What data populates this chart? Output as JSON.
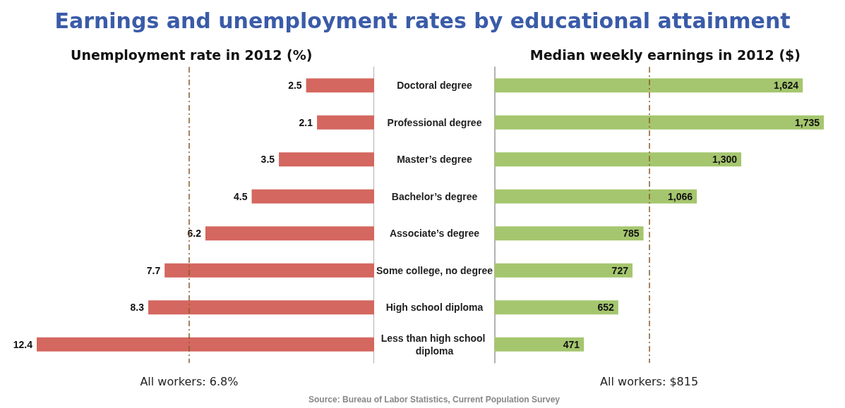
{
  "chart_data": [
    {
      "type": "bar",
      "orientation": "horizontal",
      "title": "Earnings and unemployment rates by educational attainment",
      "subtitle": "Unemployment rate in 2012 (%)",
      "categories": [
        "Doctoral degree",
        "Professional degree",
        "Master’s degree",
        "Bachelor’s degree",
        "Associate’s degree",
        "Some college, no degree",
        "High school diploma",
        "Less than high school diploma"
      ],
      "values": [
        2.5,
        2.1,
        3.5,
        4.5,
        6.2,
        7.7,
        8.3,
        12.4
      ],
      "color": "#d4675f",
      "data_labels": true,
      "tick_labels": false,
      "ref_lines": [
        {
          "axis": "x",
          "value": 6.8,
          "label": "All workers: 6.8%",
          "color": "#8b5a2b",
          "line_style": "dashdot"
        }
      ]
    },
    {
      "type": "bar",
      "orientation": "horizontal",
      "title": "Median weekly earnings in 2012 ($)",
      "categories": [
        "Doctoral degree",
        "Professional degree",
        "Master’s degree",
        "Bachelor’s degree",
        "Associate’s degree",
        "Some college, no degree",
        "High school diploma",
        "Less than high school diploma"
      ],
      "values": [
        1624,
        1735,
        1300,
        1066,
        785,
        727,
        652,
        471
      ],
      "color": "#a5c66e",
      "value_labels": [
        "1,624",
        "1,735",
        "1,300",
        "1,066",
        "785",
        "727",
        "652",
        "471"
      ],
      "tick_labels": "y",
      "ref_lines": [
        {
          "axis": "x",
          "value": 815,
          "label": "All workers: $815",
          "color": "#8b5a2b",
          "line_style": "dashdot"
        }
      ],
      "annotations": [
        "Source: Bureau of Labor Statistics, Current Population Survey"
      ]
    }
  ]
}
